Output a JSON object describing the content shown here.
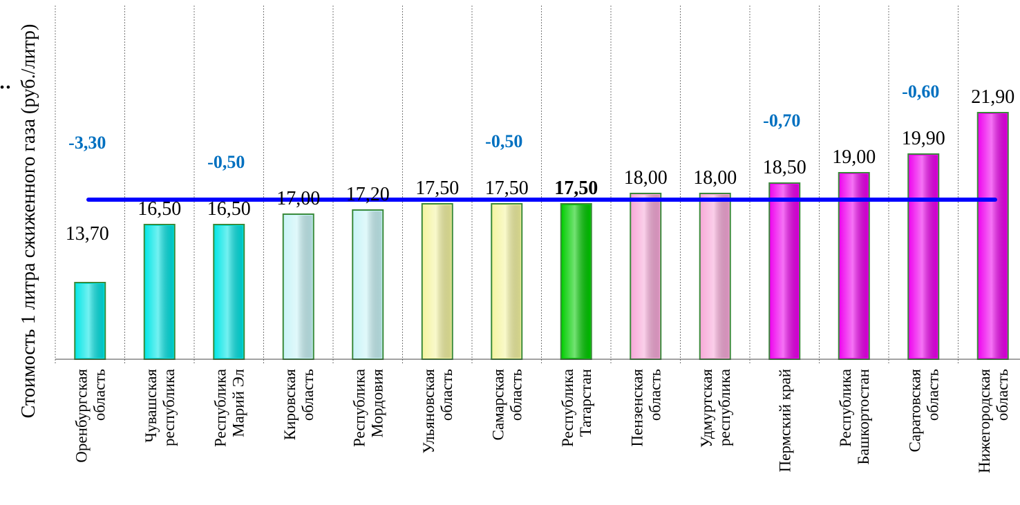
{
  "chart_data": {
    "type": "bar",
    "ylabel": "Стоимость 1 литра сжиженного газа  (руб./литр)",
    "ylabel_fragment": ":",
    "ylim": [
      10,
      23
    ],
    "grid": "vertical dotted separators between categories",
    "categories": [
      [
        "Оренбургская",
        "область"
      ],
      [
        "Чувашская",
        "республика"
      ],
      [
        "Республика",
        "Марий Эл"
      ],
      [
        "Кировская",
        "область"
      ],
      [
        "Республика",
        "Мордовия"
      ],
      [
        "Ульяновская",
        "область"
      ],
      [
        "Самарская",
        "область"
      ],
      [
        "Республика",
        "Татарстан"
      ],
      [
        "Пензенская",
        "область"
      ],
      [
        "Удмуртская",
        "республика"
      ],
      [
        "Пермский край"
      ],
      [
        "Республика",
        "Башкортостан"
      ],
      [
        "Саратовская",
        "область"
      ],
      [
        "Нижегородская",
        "область"
      ]
    ],
    "values": [
      13.7,
      16.5,
      16.5,
      17.0,
      17.2,
      17.5,
      17.5,
      17.5,
      18.0,
      18.0,
      18.5,
      19.0,
      19.9,
      21.9
    ],
    "value_labels": [
      "13,70",
      "16,50",
      "16,50",
      "17,00",
      "17,20",
      "17,50",
      "17,50",
      "17,50",
      "18,00",
      "18,00",
      "18,50",
      "19,00",
      "19,90",
      "21,90"
    ],
    "highlight_index": 7,
    "bar_colors": [
      "#00e5e5",
      "#00e5e5",
      "#00e5e5",
      "#c8f4f7",
      "#c8f4f7",
      "#f4f4a0",
      "#f4f4a0",
      "#00cc00",
      "#f7a8d8",
      "#f7a8d8",
      "#ee00ee",
      "#ee00ee",
      "#ee00ee",
      "#ee00ee"
    ],
    "bar_border_color": "#3a8a3a",
    "reference_line": {
      "value": 17.5,
      "color": "#0000ff"
    },
    "deltas": [
      {
        "index": 0,
        "label": "-3,30"
      },
      {
        "index": 2,
        "label": "-0,50"
      },
      {
        "index": 6,
        "label": "-0,50"
      },
      {
        "index": 10,
        "label": "-0,70"
      },
      {
        "index": 12,
        "label": "-0,60"
      }
    ],
    "delta_color": "#0070c0"
  }
}
